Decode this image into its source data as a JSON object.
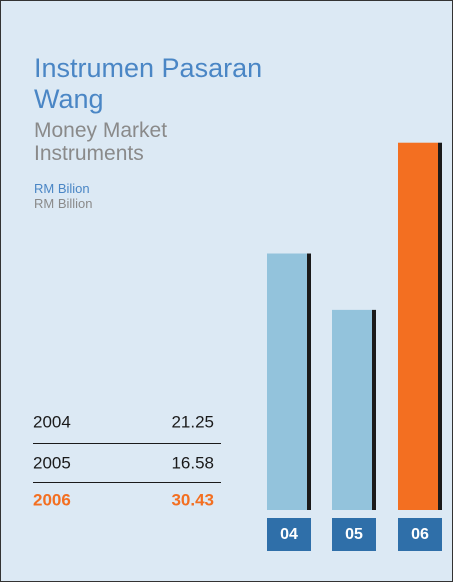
{
  "chart_data": {
    "type": "bar",
    "title": "Instrumen Pasaran Wang",
    "subtitle": "Money Market Instruments",
    "unit_label": "RM Bilion",
    "unit_label_english": "RM Billion",
    "categories": [
      "04",
      "05",
      "06"
    ],
    "years": [
      "2004",
      "2005",
      "2006"
    ],
    "values": [
      21.25,
      16.58,
      30.43
    ],
    "colors": [
      "#93c3dc",
      "#93c3dc",
      "#f36f21"
    ],
    "label_box_color": "#2f6fa9"
  }
}
